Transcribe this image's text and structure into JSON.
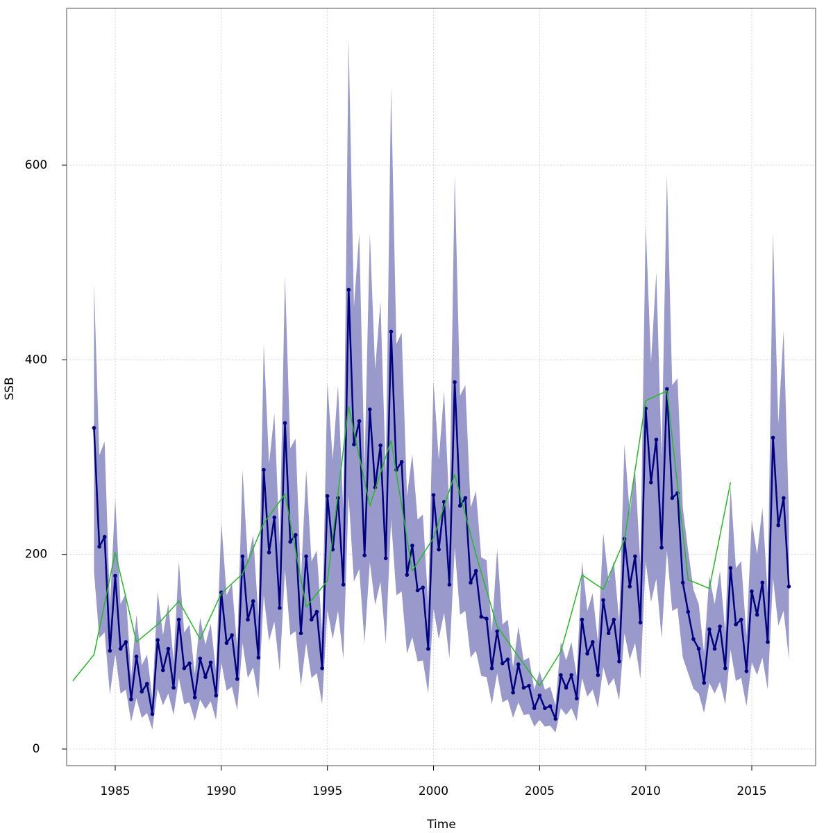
{
  "chart_data": {
    "type": "line",
    "xlabel": "Time",
    "ylabel": "SSB",
    "xlim": [
      1982.71,
      2018.01
    ],
    "ylim": [
      -17.1,
      761.2
    ],
    "xticks": [
      1985,
      1990,
      1995,
      2000,
      2005,
      2010,
      2015
    ],
    "yticks": [
      0,
      200,
      400,
      600
    ],
    "grid": true,
    "series": [
      {
        "type": "band",
        "color": "#9999cc",
        "x": [
          1984,
          1984.25,
          1984.5,
          1984.75,
          1985,
          1985.25,
          1985.5,
          1985.75,
          1986,
          1986.25,
          1986.5,
          1986.75,
          1987,
          1987.25,
          1987.5,
          1987.75,
          1988,
          1988.25,
          1988.5,
          1988.75,
          1989,
          1989.25,
          1989.5,
          1989.75,
          1990,
          1990.25,
          1990.5,
          1990.75,
          1991,
          1991.25,
          1991.5,
          1991.75,
          1992,
          1992.25,
          1992.5,
          1992.75,
          1993,
          1993.25,
          1993.5,
          1993.75,
          1994,
          1994.25,
          1994.5,
          1994.75,
          1995,
          1995.25,
          1995.5,
          1995.75,
          1996,
          1996.25,
          1996.5,
          1996.75,
          1997,
          1997.25,
          1997.5,
          1997.75,
          1998,
          1998.25,
          1998.5,
          1998.75,
          1999,
          1999.25,
          1999.5,
          1999.75,
          2000,
          2000.25,
          2000.5,
          2000.75,
          2001,
          2001.25,
          2001.5,
          2001.75,
          2002,
          2002.25,
          2002.5,
          2002.75,
          2003,
          2003.25,
          2003.5,
          2003.75,
          2004,
          2004.25,
          2004.5,
          2004.75,
          2005,
          2005.25,
          2005.5,
          2005.75,
          2006,
          2006.25,
          2006.5,
          2006.75,
          2007,
          2007.25,
          2007.5,
          2007.75,
          2008,
          2008.25,
          2008.5,
          2008.75,
          2009,
          2009.25,
          2009.5,
          2009.75,
          2010,
          2010.25,
          2010.5,
          2010.75,
          2011,
          2011.25,
          2011.5,
          2011.75,
          2012,
          2012.25,
          2012.5,
          2012.75,
          2013,
          2013.25,
          2013.5,
          2013.75,
          2014,
          2014.25,
          2014.5,
          2014.75,
          2015,
          2015.25,
          2015.5,
          2015.75,
          2016,
          2016.25,
          2016.5,
          2016.75
        ],
        "lower": [
          182,
          114,
          120,
          56,
          98,
          57,
          61,
          28,
          52,
          32,
          37,
          20,
          62,
          45,
          57,
          35,
          73,
          46,
          48,
          29,
          51,
          41,
          49,
          30,
          89,
          60,
          64,
          40,
          109,
          73,
          84,
          52,
          158,
          111,
          131,
          80,
          184,
          117,
          121,
          65,
          109,
          73,
          78,
          46,
          143,
          113,
          142,
          93,
          260,
          172,
          185,
          109,
          192,
          148,
          172,
          108,
          236,
          158,
          162,
          98,
          115,
          90,
          91,
          57,
          144,
          113,
          140,
          93,
          207,
          138,
          142,
          94,
          101,
          75,
          74,
          46,
          78,
          48,
          51,
          32,
          48,
          35,
          36,
          23,
          30,
          23,
          24,
          17,
          42,
          35,
          42,
          29,
          73,
          54,
          61,
          42,
          84,
          65,
          73,
          50,
          119,
          92,
          109,
          72,
          193,
          151,
          175,
          114,
          204,
          142,
          145,
          94,
          78,
          62,
          57,
          37,
          68,
          57,
          69,
          46,
          102,
          70,
          73,
          44,
          89,
          76,
          94,
          61,
          176,
          127,
          142,
          92
        ],
        "upper": [
          479,
          302,
          316,
          146,
          258,
          149,
          160,
          74,
          138,
          86,
          97,
          52,
          162,
          117,
          149,
          91,
          193,
          120,
          128,
          77,
          135,
          107,
          129,
          80,
          233,
          158,
          170,
          104,
          287,
          193,
          220,
          136,
          416,
          293,
          345,
          210,
          486,
          309,
          319,
          173,
          287,
          193,
          204,
          120,
          377,
          297,
          374,
          245,
          730,
          454,
          530,
          289,
          530,
          390,
          460,
          284,
          680,
          416,
          428,
          260,
          303,
          236,
          241,
          149,
          378,
          297,
          368,
          245,
          590,
          363,
          374,
          248,
          265,
          197,
          194,
          120,
          206,
          128,
          133,
          84,
          126,
          91,
          94,
          61,
          80,
          61,
          64,
          45,
          110,
          91,
          110,
          75,
          193,
          142,
          160,
          110,
          222,
          173,
          193,
          131,
          313,
          242,
          287,
          189,
          540,
          397,
          490,
          300,
          590,
          374,
          381,
          248,
          204,
          164,
          149,
          99,
          178,
          149,
          183,
          120,
          270,
          186,
          193,
          116,
          235,
          200,
          248,
          160,
          530,
          334,
          430,
          242
        ]
      },
      {
        "color": "#000080",
        "markers": true,
        "x": [
          1984,
          1984.25,
          1984.5,
          1984.75,
          1985,
          1985.25,
          1985.5,
          1985.75,
          1986,
          1986.25,
          1986.5,
          1986.75,
          1987,
          1987.25,
          1987.5,
          1987.75,
          1988,
          1988.25,
          1988.5,
          1988.75,
          1989,
          1989.25,
          1989.5,
          1989.75,
          1990,
          1990.25,
          1990.5,
          1990.75,
          1991,
          1991.25,
          1991.5,
          1991.75,
          1992,
          1992.25,
          1992.5,
          1992.75,
          1993,
          1993.25,
          1993.5,
          1993.75,
          1994,
          1994.25,
          1994.5,
          1994.75,
          1995,
          1995.25,
          1995.5,
          1995.75,
          1996,
          1996.25,
          1996.5,
          1996.75,
          1997,
          1997.25,
          1997.5,
          1997.75,
          1998,
          1998.25,
          1998.5,
          1998.75,
          1999,
          1999.25,
          1999.5,
          1999.75,
          2000,
          2000.25,
          2000.5,
          2000.75,
          2001,
          2001.25,
          2001.5,
          2001.75,
          2002,
          2002.25,
          2002.5,
          2002.75,
          2003,
          2003.25,
          2003.5,
          2003.75,
          2004,
          2004.25,
          2004.5,
          2004.75,
          2005,
          2005.25,
          2005.5,
          2005.75,
          2006,
          2006.25,
          2006.5,
          2006.75,
          2007,
          2007.25,
          2007.5,
          2007.75,
          2008,
          2008.25,
          2008.5,
          2008.75,
          2009,
          2009.25,
          2009.5,
          2009.75,
          2010,
          2010.25,
          2010.5,
          2010.75,
          2011,
          2011.25,
          2011.5,
          2011.75,
          2012,
          2012.25,
          2012.5,
          2012.75,
          2013,
          2013.25,
          2013.5,
          2013.75,
          2014,
          2014.25,
          2014.5,
          2014.75,
          2015,
          2015.25,
          2015.5,
          2015.75,
          2016,
          2016.25,
          2016.5,
          2016.75
        ],
        "values": [
          330,
          208,
          218,
          101,
          178,
          103,
          110,
          51,
          95,
          59,
          67,
          36,
          112,
          81,
          103,
          63,
          133,
          83,
          88,
          53,
          93,
          74,
          89,
          55,
          161,
          109,
          117,
          72,
          198,
          133,
          152,
          94,
          287,
          202,
          238,
          145,
          335,
          213,
          220,
          119,
          198,
          133,
          141,
          83,
          260,
          205,
          258,
          169,
          472,
          313,
          337,
          199,
          349,
          269,
          312,
          196,
          429,
          287,
          295,
          179,
          209,
          163,
          166,
          103,
          261,
          205,
          254,
          169,
          377,
          250,
          258,
          171,
          183,
          136,
          134,
          83,
          121,
          88,
          92,
          58,
          87,
          63,
          65,
          42,
          55,
          42,
          44,
          31,
          76,
          63,
          76,
          52,
          133,
          98,
          110,
          76,
          153,
          119,
          133,
          90,
          216,
          167,
          198,
          130,
          350,
          274,
          318,
          207,
          370,
          258,
          263,
          171,
          141,
          113,
          103,
          68,
          123,
          103,
          126,
          83,
          186,
          128,
          133,
          80,
          162,
          138,
          171,
          110,
          320,
          230,
          258,
          167
        ]
      },
      {
        "color": "#22bb22",
        "x": [
          1983,
          1984,
          1985,
          1986,
          1987,
          1988,
          1989,
          1990,
          1991,
          1992,
          1993,
          1994,
          1995,
          1996,
          1997,
          1998,
          1999,
          2000,
          2001,
          2002,
          2003,
          2004,
          2005,
          2006,
          2007,
          2008,
          2009,
          2010,
          2011,
          2012,
          2013,
          2014
        ],
        "values": [
          70,
          97,
          202,
          110,
          128,
          152,
          113,
          160,
          180,
          232,
          262,
          146,
          173,
          352,
          250,
          317,
          183,
          217,
          282,
          200,
          126,
          95,
          65,
          100,
          179,
          164,
          215,
          358,
          368,
          174,
          165,
          274
        ]
      }
    ]
  }
}
